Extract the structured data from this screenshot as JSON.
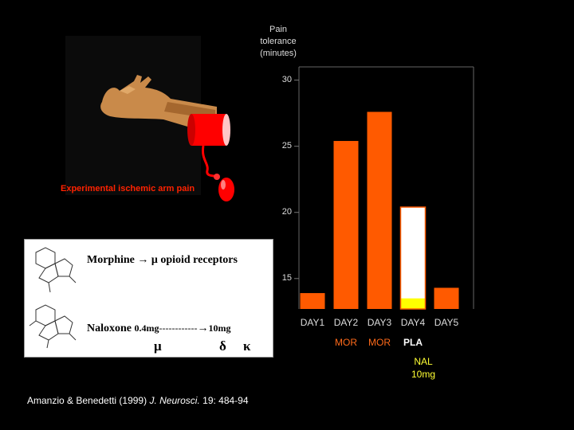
{
  "illustration": {
    "caption": "Experimental ischemic arm pain",
    "icons": [
      "arm-icon",
      "tourniquet-cuff-icon",
      "pump-bulb-icon"
    ]
  },
  "panel": {
    "line1": "Morphine → μ opioid receptors",
    "naloxone_label": "Naloxone",
    "dose_low": "0.4mg",
    "dashes": "------------",
    "arrow": "→",
    "dose_high": "10mg",
    "receptors": [
      "μ",
      "δ",
      "κ"
    ]
  },
  "citation": {
    "authors": "Amanzio & Benedetti (1999)",
    "journal": "J. Neurosci.",
    "details": "19: 484-94"
  },
  "colors": {
    "background": "#000000",
    "bar_orange": "#ff5a00",
    "bar_white": "#ffffff",
    "bar_yellow": "#ffff00",
    "caption_red": "#ff2200"
  },
  "chart_data": {
    "type": "bar",
    "ylabel_lines": [
      "Pain",
      "tolerance",
      "(minutes)"
    ],
    "ylim": [
      12.7,
      31
    ],
    "yticks": [
      15,
      20,
      25,
      30
    ],
    "categories": [
      "DAY1",
      "DAY2",
      "DAY3",
      "DAY4",
      "DAY5"
    ],
    "bars": [
      {
        "category": "DAY1",
        "value": 13.9,
        "color": "#ff5a00"
      },
      {
        "category": "DAY2",
        "value": 25.4,
        "color": "#ff5a00"
      },
      {
        "category": "DAY3",
        "value": 27.6,
        "color": "#ff5a00"
      },
      {
        "category": "DAY4",
        "value": 20.4,
        "color": "#ffffff",
        "nal_portion": 13.5,
        "nal_color": "#ffff00"
      },
      {
        "category": "DAY5",
        "value": 14.3,
        "color": "#ff5a00"
      }
    ],
    "conditions": [
      {
        "category": "DAY1",
        "label": ""
      },
      {
        "category": "DAY2",
        "label": "MOR"
      },
      {
        "category": "DAY3",
        "label": "MOR"
      },
      {
        "category": "DAY4",
        "label": "PLA"
      },
      {
        "category": "DAY5",
        "label": ""
      }
    ],
    "nal_annotation_lines": [
      "NAL",
      "10mg"
    ],
    "grid": false
  }
}
